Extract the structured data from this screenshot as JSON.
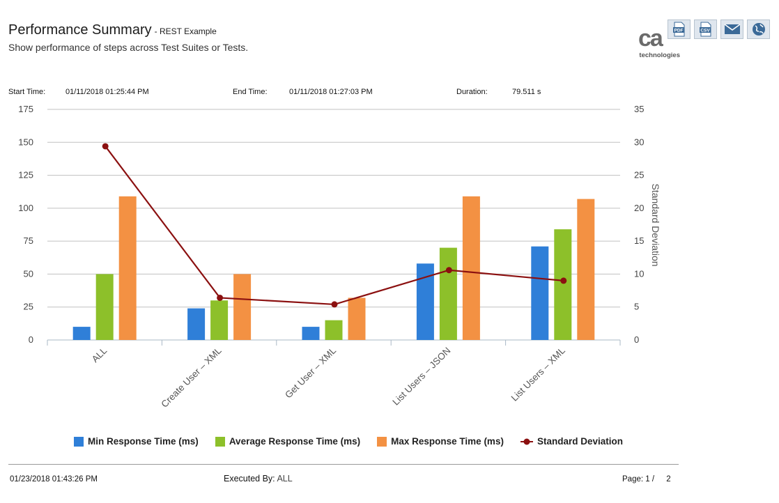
{
  "header": {
    "title": "Performance Summary",
    "subtitle": "- REST Example",
    "description": "Show performance of steps across Test Suites or Tests."
  },
  "toolbar": {
    "buttons": [
      {
        "label": "PDF",
        "icon": "pdf-icon"
      },
      {
        "label": "CSV",
        "icon": "csv-icon"
      },
      {
        "label": "",
        "icon": "email-icon"
      },
      {
        "label": "",
        "icon": "globe-icon"
      }
    ]
  },
  "logo": {
    "mark": "ca",
    "text": "technologies"
  },
  "meta": {
    "start_label": "Start Time:",
    "start_value": "01/11/2018 01:25:44 PM",
    "end_label": "End Time:",
    "end_value": "01/11/2018 01:27:03 PM",
    "duration_label": "Duration:",
    "duration_value": "79.511 s"
  },
  "chart_data": {
    "type": "bar",
    "categories": [
      "ALL",
      "Create User – XML",
      "Get User – XML",
      "List Users – JSON",
      "List Users – XML"
    ],
    "series": [
      {
        "name": "Min Response Time (ms)",
        "type": "bar",
        "axis": "left",
        "color": "#2f7fd8",
        "values": [
          10,
          24,
          10,
          58,
          71
        ]
      },
      {
        "name": "Average Response Time (ms)",
        "type": "bar",
        "axis": "left",
        "color": "#8dc02a",
        "values": [
          50,
          30,
          15,
          70,
          84
        ]
      },
      {
        "name": "Max Response Time (ms)",
        "type": "bar",
        "axis": "left",
        "color": "#f39143",
        "values": [
          109,
          50,
          32,
          109,
          107
        ]
      },
      {
        "name": "Standard Deviation",
        "type": "line",
        "axis": "right",
        "color": "#8b1010",
        "values": [
          29.4,
          6.4,
          5.4,
          10.6,
          9.0
        ]
      }
    ],
    "ylim": [
      0,
      175
    ],
    "yticks": [
      "0",
      "25",
      "50",
      "75",
      "100",
      "125",
      "150",
      "175"
    ],
    "y2lim": [
      0,
      35
    ],
    "y2ticks": [
      "0",
      "5",
      "10",
      "15",
      "20",
      "25",
      "30",
      "35"
    ],
    "y2label": "Standard Deviation",
    "xlabel": "",
    "ylabel": "",
    "grid": true,
    "legend": "bottom"
  },
  "footer": {
    "generated": "01/23/2018 01:43:26 PM",
    "executed_label": "Executed By:",
    "executed_value": "ALL",
    "page_label": "Page: 1 /",
    "page_total": "2"
  }
}
